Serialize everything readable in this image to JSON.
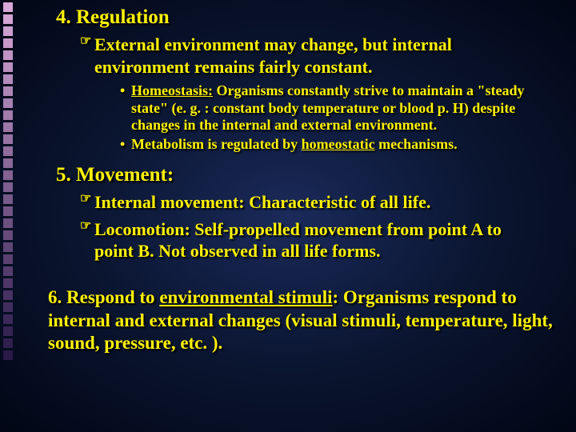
{
  "side_squares": {
    "count": 30,
    "color_start": "#d8a8d8",
    "color_end": "#2a1a4a"
  },
  "section4": {
    "heading": "4.  Regulation",
    "sub1_bullet": "☞",
    "sub1": "External environment may change, but internal environment remains fairly constant.",
    "bullet": "•",
    "sub2a_term": "Homeostasis:",
    "sub2a_body": " Organisms constantly strive to maintain a \"steady state\" (e. g. : constant body temperature or blood p. H) despite changes in the internal and external environment.",
    "sub2b_pre": "Metabolism is regulated by ",
    "sub2b_term": "homeostatic",
    "sub2b_post": " mechanisms."
  },
  "section5": {
    "heading": "5.  Movement:",
    "sub1_bullet": "☞",
    "sub1a_term": "Internal movement:",
    "sub1a_body": "  Characteristic of all life.",
    "sub1b_term": "Locomotion:",
    "sub1b_body": "  Self-propelled movement from point A to point B.  Not observed in all life forms."
  },
  "section6": {
    "pre": "6.  Respond to ",
    "term": "environmental stimuli",
    "body": ": Organisms respond to internal and external changes (visual stimuli, temperature, light, sound, pressure, etc. )."
  },
  "colors": {
    "text": "#fff200",
    "shadow": "#000000"
  }
}
